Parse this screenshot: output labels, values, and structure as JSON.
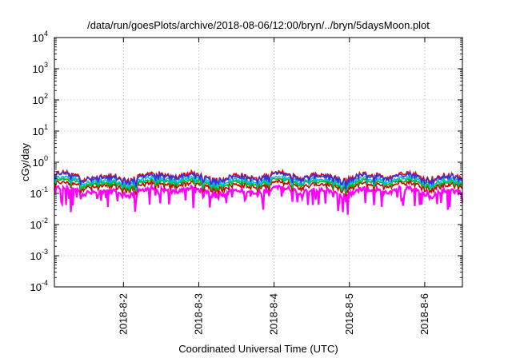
{
  "chart_data": {
    "type": "line",
    "title": "/data/run/goesPlots/archive/2018-08-06/12:00/bryn/../bryn/5daysMoon.plot",
    "xlabel": "Coordinated Universal Time (UTC)",
    "ylabel": "cGy/day",
    "yscale": "log",
    "ylim": [
      0.0001,
      10000
    ],
    "xlim": [
      "2018-08-01T02:00",
      "2018-08-06T12:00"
    ],
    "grid": true,
    "legend": "none",
    "y_ticks": [
      {
        "base": "10",
        "exp": "-4"
      },
      {
        "base": "10",
        "exp": "-3"
      },
      {
        "base": "10",
        "exp": "-2"
      },
      {
        "base": "10",
        "exp": "-1"
      },
      {
        "base": "10",
        "exp": "0"
      },
      {
        "base": "10",
        "exp": "1"
      },
      {
        "base": "10",
        "exp": "2"
      },
      {
        "base": "10",
        "exp": "3"
      },
      {
        "base": "10",
        "exp": "4"
      }
    ],
    "x_ticks": [
      {
        "label": "2018-8-2",
        "value": "2018-08-02T00:00"
      },
      {
        "label": "2018-8-3",
        "value": "2018-08-03T00:00"
      },
      {
        "label": "2018-8-4",
        "value": "2018-08-04T00:00"
      },
      {
        "label": "2018-8-5",
        "value": "2018-08-05T00:00"
      },
      {
        "label": "2018-8-6",
        "value": "2018-08-06T00:00"
      }
    ],
    "series": [
      {
        "color": "#ff00ff",
        "typical_value": 0.12,
        "min_value": 0.05,
        "style": "fill-to-line"
      },
      {
        "color": "#cc0000",
        "typical_value": 0.18,
        "max_value": 0.3
      },
      {
        "color": "#00bb00",
        "typical_value": 0.22,
        "max_value": 0.3
      },
      {
        "color": "#00bbdd",
        "typical_value": 0.26,
        "max_value": 0.35
      },
      {
        "color": "#ee0000",
        "typical_value": 0.36,
        "max_value": 0.55
      },
      {
        "color": "#3333dd",
        "typical_value": 0.33,
        "max_value": 0.5
      }
    ]
  }
}
